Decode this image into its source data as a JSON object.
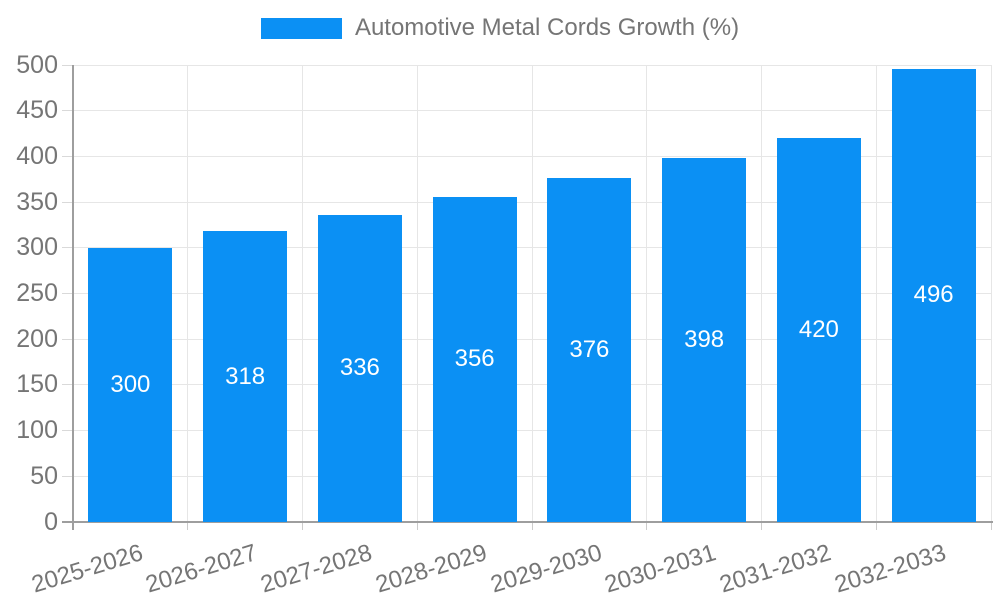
{
  "legend": {
    "label": "Automotive Metal Cords Growth (%)"
  },
  "chart_data": {
    "type": "bar",
    "title": "Automotive Metal Cords Growth (%)",
    "categories": [
      "2025-2026",
      "2026-2027",
      "2027-2028",
      "2028-2029",
      "2029-2030",
      "2030-2031",
      "2031-2032",
      "2032-2033"
    ],
    "values": [
      300,
      318,
      336,
      356,
      376,
      398,
      420,
      496
    ],
    "xlabel": "",
    "ylabel": "",
    "ylim": [
      0,
      500
    ],
    "ytick_step": 50,
    "yticks": [
      0,
      50,
      100,
      150,
      200,
      250,
      300,
      350,
      400,
      450,
      500
    ],
    "grid": "horizontal gridlines at each ytick, vertical gridlines at category boundaries",
    "legend_position": "top-center",
    "value_labels": "white, centered inside bars",
    "colors": {
      "bar": "#0b90f4",
      "value_label": "#ffffff",
      "axis_text": "#757575",
      "gridline": "#e6e6e6",
      "axis_line": "#9e9e9e",
      "background": "#ffffff"
    }
  }
}
